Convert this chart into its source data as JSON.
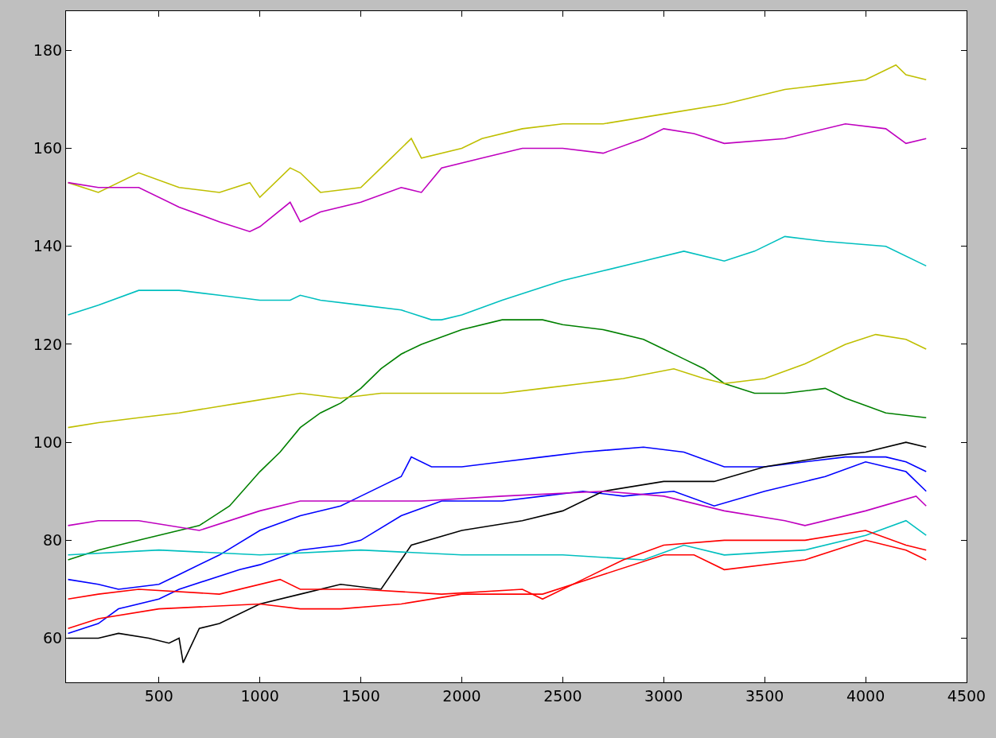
{
  "chart_data": {
    "type": "line",
    "xlim": [
      40,
      4500
    ],
    "ylim": [
      51,
      188
    ],
    "xticks": [
      500,
      1000,
      1500,
      2000,
      2500,
      3000,
      3500,
      4000,
      4500
    ],
    "yticks": [
      60,
      80,
      100,
      120,
      140,
      160,
      180
    ],
    "marker": "none",
    "line_style": "solid",
    "series": [
      {
        "color": "#bfbf00",
        "x": [
          50,
          200,
          400,
          600,
          800,
          950,
          1000,
          1150,
          1200,
          1300,
          1500,
          1650,
          1750,
          1800,
          2000,
          2100,
          2300,
          2500,
          2700,
          3000,
          3300,
          3600,
          3800,
          4000,
          4150,
          4200,
          4300
        ],
        "values": [
          153,
          151,
          155,
          152,
          151,
          153,
          150,
          156,
          155,
          151,
          152,
          158,
          162,
          158,
          160,
          162,
          164,
          165,
          165,
          167,
          169,
          172,
          173,
          174,
          177,
          175,
          174
        ]
      },
      {
        "color": "#bf00bf",
        "x": [
          50,
          200,
          400,
          600,
          800,
          950,
          1000,
          1150,
          1200,
          1300,
          1500,
          1700,
          1800,
          1900,
          2100,
          2300,
          2500,
          2700,
          2900,
          3000,
          3150,
          3300,
          3600,
          3900,
          4100,
          4200,
          4300
        ],
        "values": [
          153,
          152,
          152,
          148,
          145,
          143,
          144,
          149,
          145,
          147,
          149,
          152,
          151,
          156,
          158,
          160,
          160,
          159,
          162,
          164,
          163,
          161,
          162,
          165,
          164,
          161,
          162
        ]
      },
      {
        "color": "#00bfbf",
        "x": [
          50,
          200,
          400,
          600,
          800,
          1000,
          1150,
          1200,
          1300,
          1500,
          1700,
          1850,
          1900,
          2000,
          2200,
          2500,
          2700,
          2900,
          3100,
          3300,
          3450,
          3600,
          3800,
          4100,
          4300
        ],
        "values": [
          126,
          128,
          131,
          131,
          130,
          129,
          129,
          130,
          129,
          128,
          127,
          125,
          125,
          126,
          129,
          133,
          135,
          137,
          139,
          137,
          139,
          142,
          141,
          140,
          136
        ]
      },
      {
        "color": "#008000",
        "x": [
          50,
          200,
          400,
          600,
          700,
          850,
          1000,
          1100,
          1200,
          1300,
          1400,
          1500,
          1600,
          1700,
          1800,
          2000,
          2200,
          2400,
          2500,
          2700,
          2900,
          3000,
          3100,
          3200,
          3300,
          3450,
          3600,
          3800,
          3900,
          4100,
          4300
        ],
        "values": [
          76,
          78,
          80,
          82,
          83,
          87,
          94,
          98,
          103,
          106,
          108,
          111,
          115,
          118,
          120,
          123,
          125,
          125,
          124,
          123,
          121,
          119,
          117,
          115,
          112,
          110,
          110,
          111,
          109,
          106,
          105
        ]
      },
      {
        "color": "#bfbf00",
        "x": [
          50,
          200,
          400,
          600,
          900,
          1200,
          1400,
          1600,
          1800,
          2000,
          2200,
          2400,
          2600,
          2800,
          3050,
          3200,
          3300,
          3500,
          3700,
          3900,
          4050,
          4200,
          4300
        ],
        "values": [
          103,
          104,
          105,
          106,
          108,
          110,
          109,
          110,
          110,
          110,
          110,
          111,
          112,
          113,
          115,
          113,
          112,
          113,
          116,
          120,
          122,
          121,
          119
        ]
      },
      {
        "color": "#0000ff",
        "x": [
          50,
          200,
          300,
          500,
          600,
          800,
          1000,
          1200,
          1400,
          1500,
          1700,
          1750,
          1850,
          2000,
          2200,
          2400,
          2600,
          2900,
          3100,
          3300,
          3500,
          3700,
          3900,
          4100,
          4200,
          4300
        ],
        "values": [
          72,
          71,
          70,
          71,
          73,
          77,
          82,
          85,
          87,
          89,
          93,
          97,
          95,
          95,
          96,
          97,
          98,
          99,
          98,
          95,
          95,
          96,
          97,
          97,
          96,
          94
        ]
      },
      {
        "color": "#0000ff",
        "x": [
          50,
          200,
          300,
          500,
          600,
          900,
          1000,
          1200,
          1400,
          1500,
          1700,
          1900,
          2200,
          2400,
          2600,
          2800,
          3050,
          3250,
          3500,
          3800,
          4000,
          4200,
          4300
        ],
        "values": [
          61,
          63,
          66,
          68,
          70,
          74,
          75,
          78,
          79,
          80,
          85,
          88,
          88,
          89,
          90,
          89,
          90,
          87,
          90,
          93,
          96,
          94,
          90
        ]
      },
      {
        "color": "#000000",
        "x": [
          50,
          200,
          300,
          450,
          550,
          600,
          620,
          700,
          800,
          1000,
          1200,
          1400,
          1600,
          1700,
          1750,
          2000,
          2300,
          2500,
          2700,
          3000,
          3250,
          3500,
          3800,
          4000,
          4200,
          4300
        ],
        "values": [
          60,
          60,
          61,
          60,
          59,
          60,
          55,
          62,
          63,
          67,
          69,
          71,
          70,
          76,
          79,
          82,
          84,
          86,
          90,
          92,
          92,
          95,
          97,
          98,
          100,
          99
        ]
      },
      {
        "color": "#bf00bf",
        "x": [
          50,
          200,
          400,
          700,
          1000,
          1200,
          1400,
          1800,
          2200,
          2700,
          3000,
          3300,
          3600,
          3700,
          4000,
          4250,
          4300
        ],
        "values": [
          83,
          84,
          84,
          82,
          86,
          88,
          88,
          88,
          89,
          90,
          89,
          86,
          84,
          83,
          86,
          89,
          87
        ]
      },
      {
        "color": "#00bfbf",
        "x": [
          50,
          500,
          1000,
          1500,
          2000,
          2500,
          2900,
          3100,
          3300,
          3700,
          4000,
          4200,
          4300
        ],
        "values": [
          77,
          78,
          77,
          78,
          77,
          77,
          76,
          79,
          77,
          78,
          81,
          84,
          81
        ]
      },
      {
        "color": "#ff0000",
        "x": [
          50,
          200,
          400,
          800,
          1100,
          1200,
          1500,
          1900,
          2300,
          2400,
          2600,
          2800,
          3000,
          3300,
          3700,
          4000,
          4200,
          4300
        ],
        "values": [
          68,
          69,
          70,
          69,
          72,
          70,
          70,
          69,
          70,
          68,
          72,
          76,
          79,
          80,
          80,
          82,
          79,
          78
        ]
      },
      {
        "color": "#ff0000",
        "x": [
          50,
          200,
          500,
          1000,
          1200,
          1400,
          1700,
          2000,
          2400,
          2700,
          3000,
          3150,
          3300,
          3700,
          4000,
          4200,
          4300
        ],
        "values": [
          62,
          64,
          66,
          67,
          66,
          66,
          67,
          69,
          69,
          73,
          77,
          77,
          74,
          76,
          80,
          78,
          76
        ]
      }
    ]
  }
}
